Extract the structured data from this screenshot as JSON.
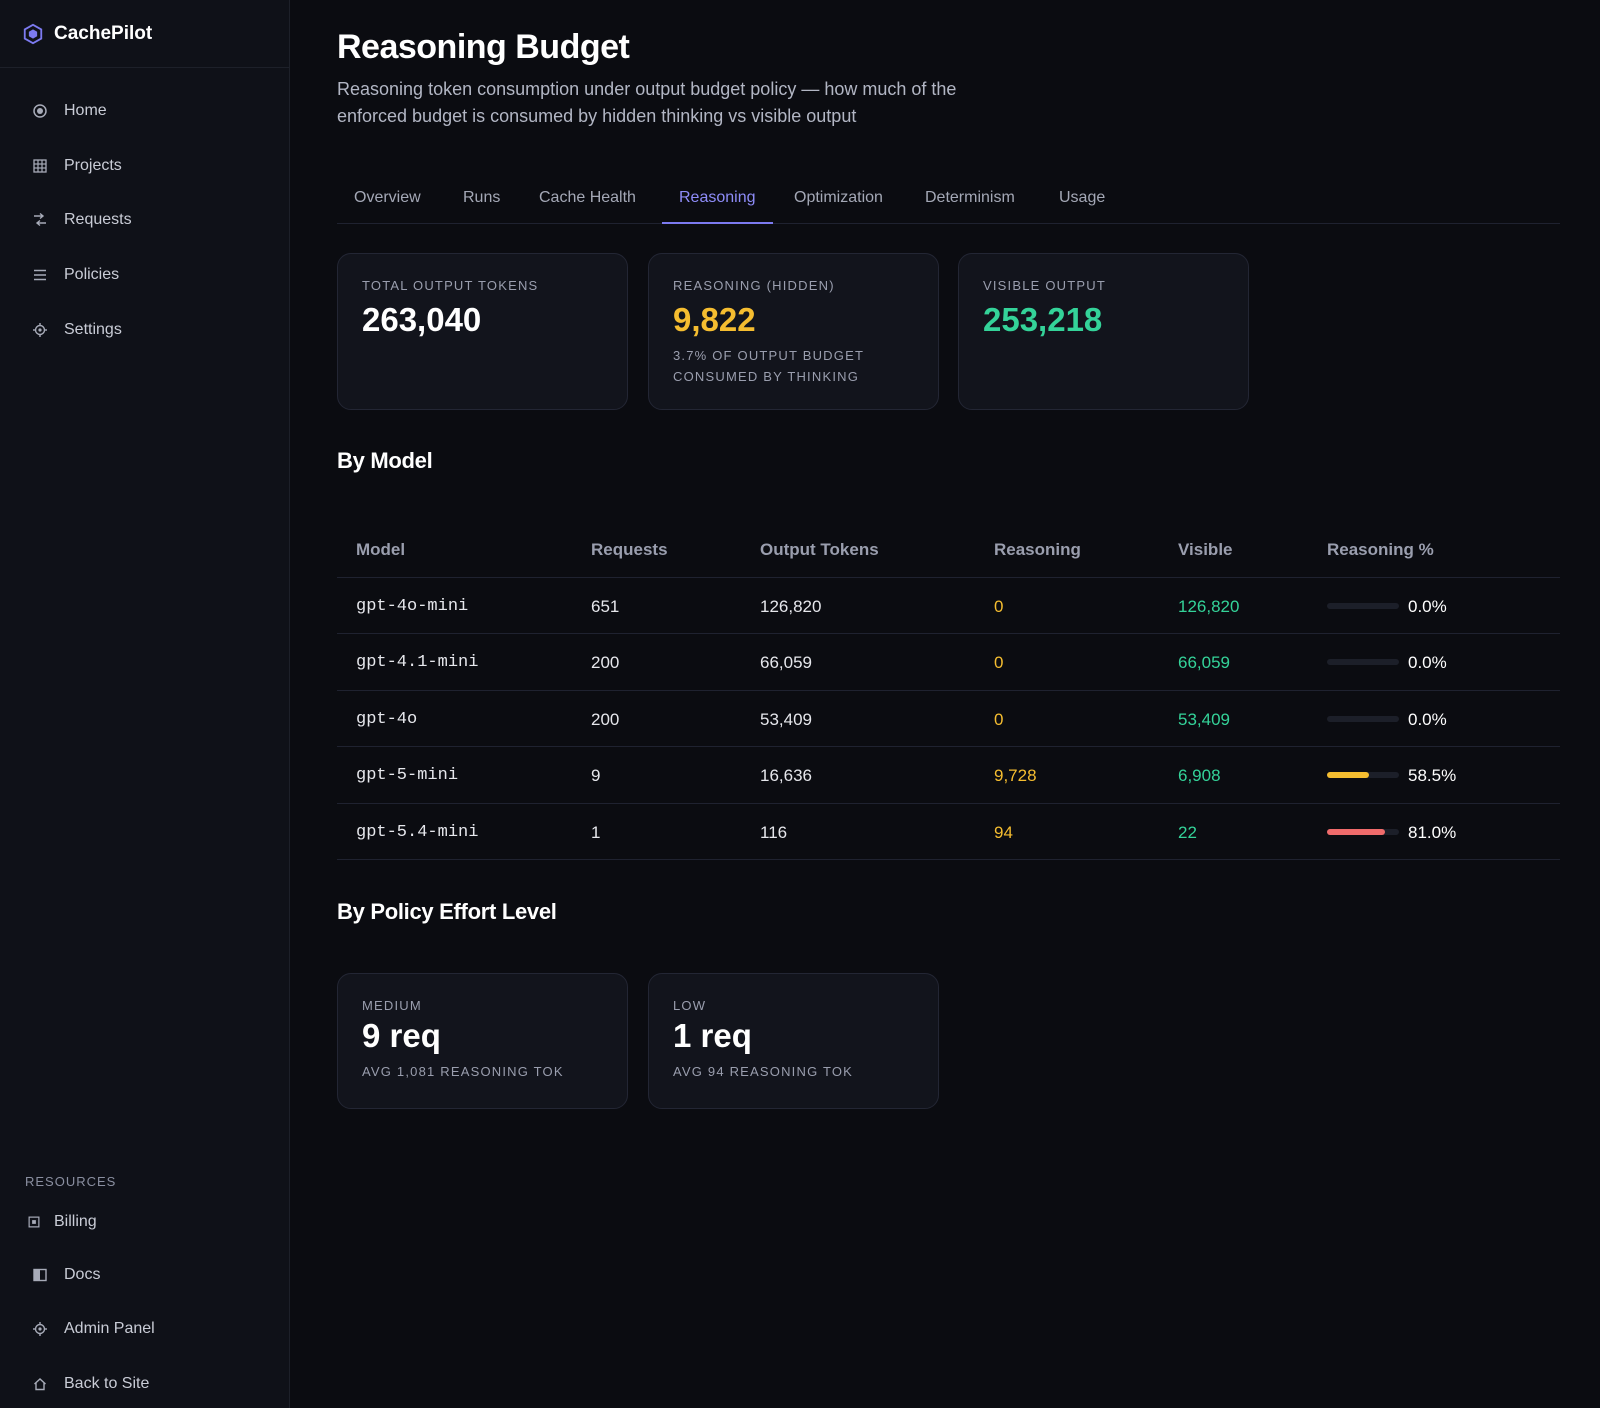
{
  "app": {
    "name": "CachePilot"
  },
  "nav": {
    "items": [
      {
        "label": "Home",
        "icon": "home-icon"
      },
      {
        "label": "Projects",
        "icon": "grid-icon"
      },
      {
        "label": "Requests",
        "icon": "swap-icon"
      },
      {
        "label": "Policies",
        "icon": "list-icon"
      },
      {
        "label": "Settings",
        "icon": "gear-icon"
      }
    ]
  },
  "resources": {
    "title": "RESOURCES",
    "items": [
      {
        "label": "Billing",
        "icon": "billing-icon"
      },
      {
        "label": "Docs",
        "icon": "docs-icon"
      },
      {
        "label": "Admin Panel",
        "icon": "gear-icon"
      },
      {
        "label": "Back to Site",
        "icon": "house-icon"
      }
    ]
  },
  "page": {
    "title": "Reasoning Budget",
    "description": "Reasoning token consumption under output budget policy — how much of the enforced budget is consumed by hidden thinking vs visible output"
  },
  "tabs": [
    {
      "label": "Overview",
      "active": false
    },
    {
      "label": "Runs",
      "active": false
    },
    {
      "label": "Cache Health",
      "active": false
    },
    {
      "label": "Reasoning",
      "active": true
    },
    {
      "label": "Optimization",
      "active": false
    },
    {
      "label": "Determinism",
      "active": false
    },
    {
      "label": "Usage",
      "active": false
    }
  ],
  "stats": [
    {
      "label": "TOTAL OUTPUT TOKENS",
      "value": "263,040",
      "sub": ""
    },
    {
      "label": "REASONING (HIDDEN)",
      "value": "9,822",
      "sub": "3.7% OF OUTPUT BUDGET CONSUMED BY THINKING"
    },
    {
      "label": "VISIBLE OUTPUT",
      "value": "253,218",
      "sub": ""
    }
  ],
  "by_model": {
    "title": "By Model",
    "columns": [
      "Model",
      "Requests",
      "Output Tokens",
      "Reasoning",
      "Visible",
      "Reasoning %"
    ],
    "rows": [
      {
        "model": "gpt-4o-mini",
        "requests": "651",
        "output": "126,820",
        "reasoning": "0",
        "visible": "126,820",
        "pct_label": "0.0%",
        "pct": 0.0,
        "bar_color": "#1c1f29"
      },
      {
        "model": "gpt-4.1-mini",
        "requests": "200",
        "output": "66,059",
        "reasoning": "0",
        "visible": "66,059",
        "pct_label": "0.0%",
        "pct": 0.0,
        "bar_color": "#1c1f29"
      },
      {
        "model": "gpt-4o",
        "requests": "200",
        "output": "53,409",
        "reasoning": "0",
        "visible": "53,409",
        "pct_label": "0.0%",
        "pct": 0.0,
        "bar_color": "#1c1f29"
      },
      {
        "model": "gpt-5-mini",
        "requests": "9",
        "output": "16,636",
        "reasoning": "9,728",
        "visible": "6,908",
        "pct_label": "58.5%",
        "pct": 58.5,
        "bar_color": "#f5bd30"
      },
      {
        "model": "gpt-5.4-mini",
        "requests": "1",
        "output": "116",
        "reasoning": "94",
        "visible": "22",
        "pct_label": "81.0%",
        "pct": 81.0,
        "bar_color": "#f06b6b"
      }
    ]
  },
  "by_policy": {
    "title": "By Policy Effort Level",
    "cards": [
      {
        "label": "MEDIUM",
        "value": "9 req",
        "sub": "AVG 1,081 REASONING TOK"
      },
      {
        "label": "LOW",
        "value": "1 req",
        "sub": "AVG 94 REASONING TOK"
      }
    ]
  },
  "colors": {
    "accent": "#7c7af0",
    "reasoning": "#f5bd30",
    "visible": "#34d399",
    "danger": "#f06b6b"
  }
}
